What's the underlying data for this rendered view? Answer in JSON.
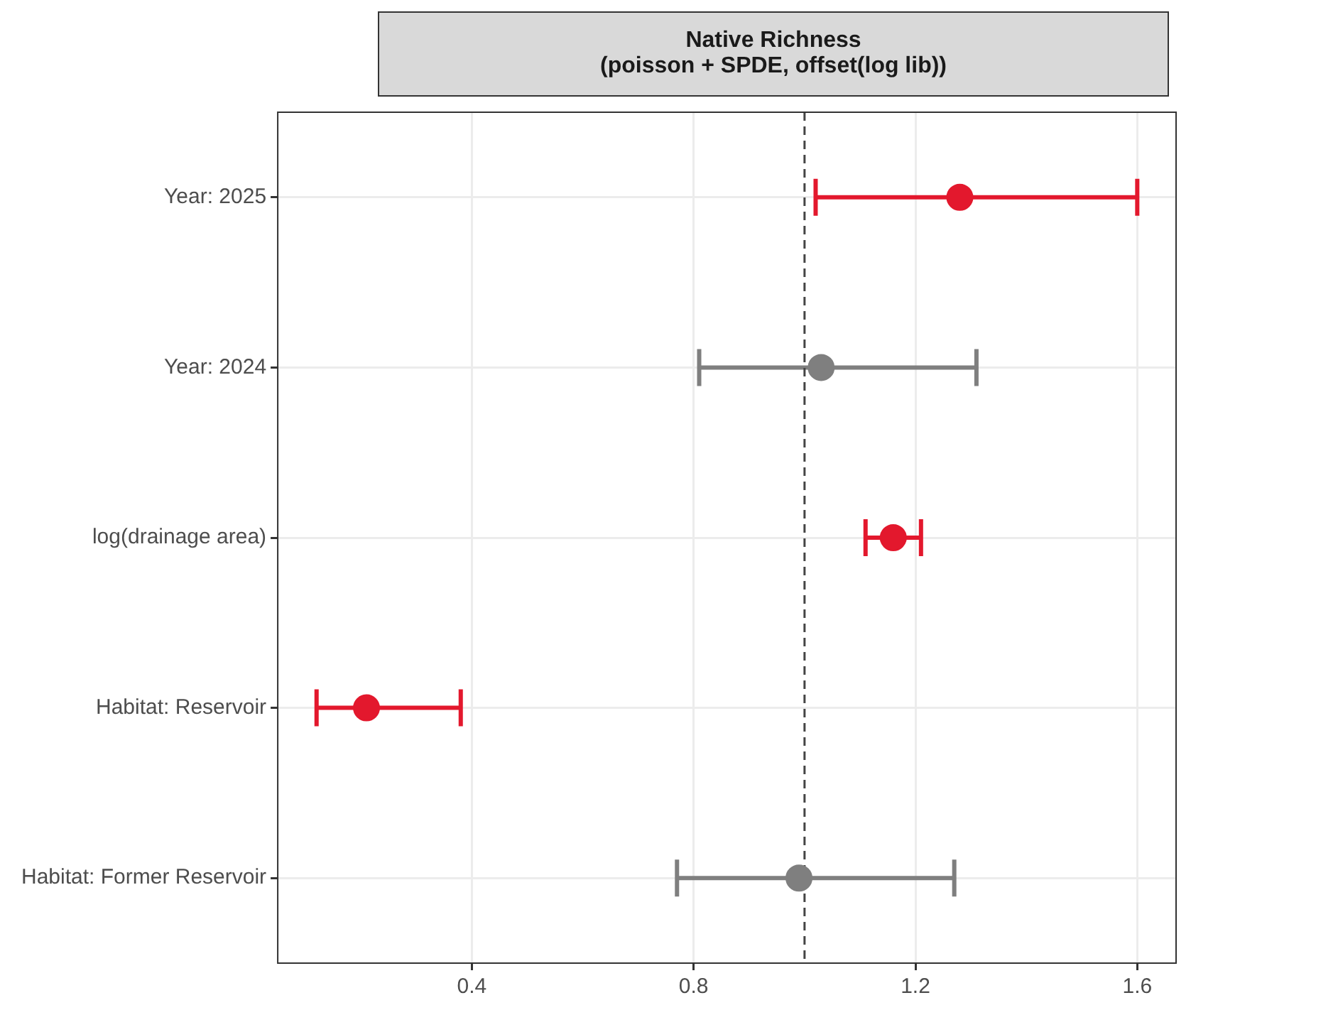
{
  "chart_data": {
    "type": "scatter",
    "title": "Native Richness\n(poisson + SPDE, offset(log lib))",
    "orientation": "horizontal",
    "categories": [
      "Year: 2025",
      "Year: 2024",
      "log(drainage area)",
      "Habitat: Reservoir",
      "Habitat: Former Reservoir"
    ],
    "values": [
      1.28,
      1.03,
      1.16,
      0.21,
      0.99
    ],
    "errors": [
      [
        1.02,
        1.6
      ],
      [
        0.81,
        1.31
      ],
      [
        1.11,
        1.21
      ],
      [
        0.12,
        0.38
      ],
      [
        0.77,
        1.27
      ]
    ],
    "colors": [
      "#e3182d",
      "#7f7f7f",
      "#e3182d",
      "#e3182d",
      "#7f7f7f"
    ],
    "xlim": [
      0.05,
      1.67
    ],
    "xticks": [
      0.4,
      0.8,
      1.2,
      1.6
    ],
    "ref_lines": [
      {
        "axis": "x",
        "value": 1,
        "color": "#444444",
        "line_style": "dashed"
      }
    ],
    "grid": true,
    "marker": "circle",
    "legend": false
  }
}
